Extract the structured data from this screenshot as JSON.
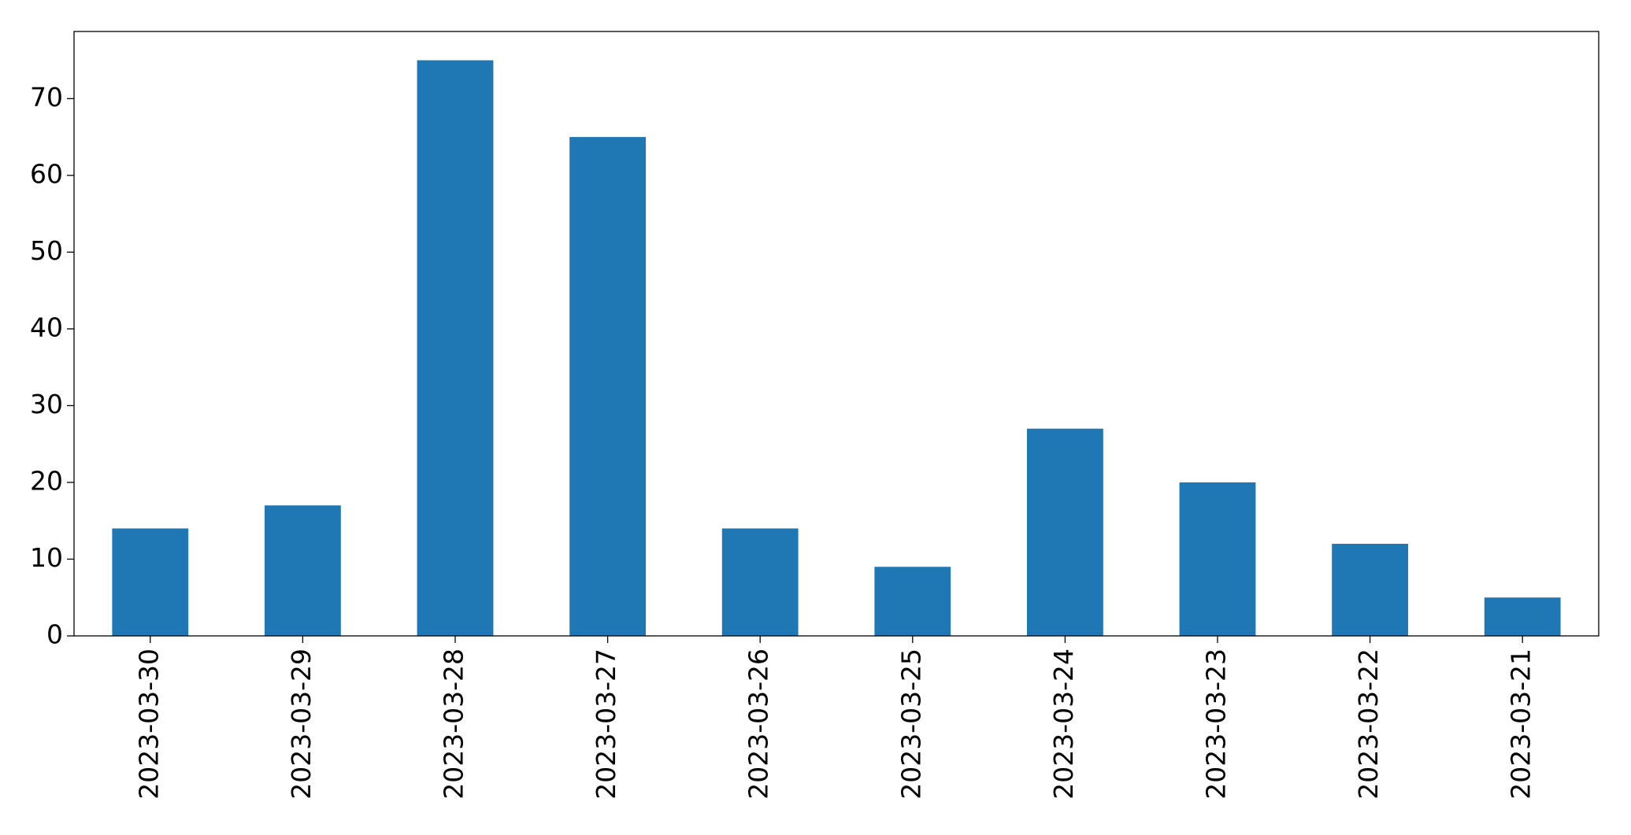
{
  "chart_data": {
    "type": "bar",
    "categories": [
      "2023-03-30",
      "2023-03-29",
      "2023-03-28",
      "2023-03-27",
      "2023-03-26",
      "2023-03-25",
      "2023-03-24",
      "2023-03-23",
      "2023-03-22",
      "2023-03-21"
    ],
    "values": [
      14,
      17,
      75,
      65,
      14,
      9,
      27,
      20,
      12,
      5
    ],
    "color": "#1f77b4",
    "ylim": [
      0,
      78.75
    ],
    "yticks": [
      0,
      10,
      20,
      30,
      40,
      50,
      60,
      70
    ],
    "grid": false
  }
}
